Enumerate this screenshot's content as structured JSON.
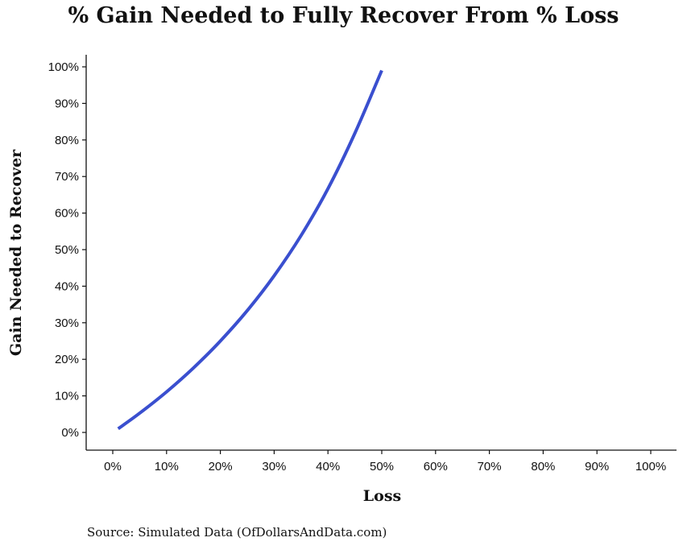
{
  "chart_data": {
    "type": "line",
    "title": "% Gain Needed to Fully Recover From % Loss",
    "xlabel": "Loss",
    "ylabel": "Gain Needed to Recover",
    "source": "Source:  Simulated Data (OfDollarsAndData.com)",
    "xlim": [
      0,
      1
    ],
    "ylim": [
      0,
      1
    ],
    "x_ticks": [
      "0%",
      "10%",
      "20%",
      "30%",
      "40%",
      "50%",
      "60%",
      "70%",
      "80%",
      "90%",
      "100%"
    ],
    "y_ticks": [
      "0%",
      "10%",
      "20%",
      "30%",
      "40%",
      "50%",
      "60%",
      "70%",
      "80%",
      "90%",
      "100%"
    ],
    "grid": false,
    "series": [
      {
        "color": "#3a4fcf",
        "x": [
          0.01,
          0.05,
          0.1,
          0.15,
          0.2,
          0.25,
          0.3,
          0.35,
          0.4,
          0.45,
          0.5
        ],
        "y": [
          0.0101,
          0.0526,
          0.1111,
          0.1765,
          0.25,
          0.3333,
          0.4286,
          0.5385,
          0.6667,
          0.8182,
          0.99
        ]
      }
    ]
  }
}
